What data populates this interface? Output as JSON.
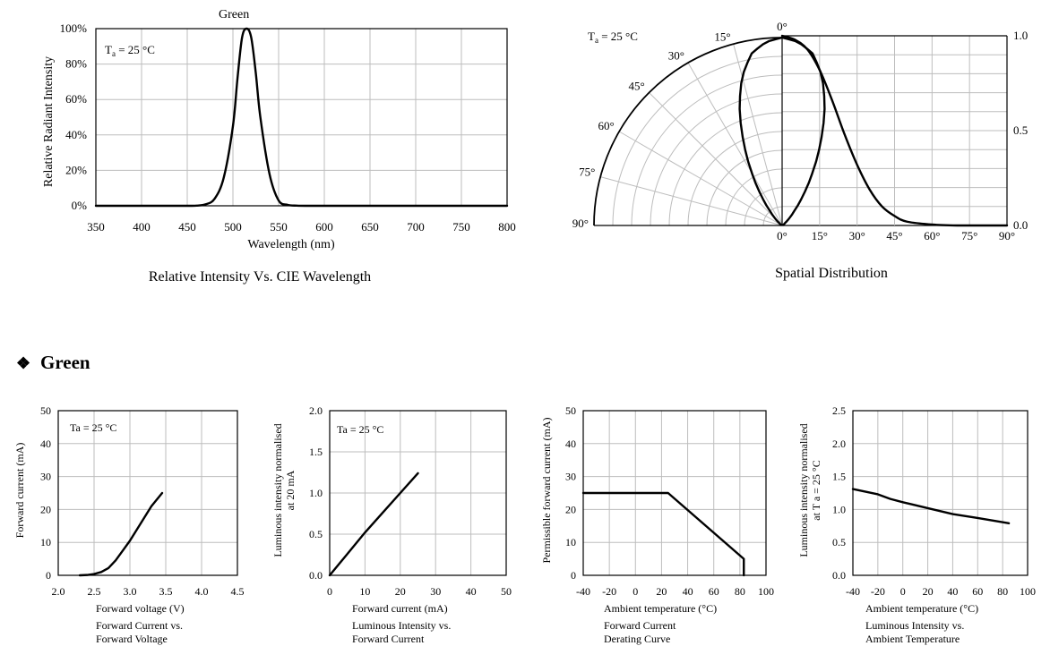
{
  "section_heading": {
    "bullet": "❖",
    "text": "Green"
  },
  "chart_data": [
    {
      "id": "spectrum",
      "type": "line",
      "title": "Relative Intensity Vs. CIE Wavelength",
      "series": [
        {
          "name": "Green",
          "x": [
            350,
            400,
            450,
            460,
            470,
            480,
            490,
            500,
            505,
            510,
            515,
            520,
            525,
            530,
            540,
            550,
            560,
            570,
            580,
            600,
            650,
            700,
            750,
            800
          ],
          "y": [
            0,
            0,
            0,
            0.1,
            0.8,
            4,
            16,
            45,
            72,
            95,
            100,
            95,
            75,
            50,
            18,
            3,
            0.5,
            0.1,
            0,
            0,
            0,
            0,
            0,
            0
          ]
        }
      ],
      "xlabel": "Wavelength (nm)",
      "ylabel": "Relative  Radiant  Intensity",
      "xlim": [
        350,
        800
      ],
      "ylim": [
        0,
        100
      ],
      "x_ticks": [
        "350",
        "400",
        "450",
        "500",
        "550",
        "600",
        "650",
        "700",
        "750",
        "800"
      ],
      "y_ticks": [
        "0%",
        "20%",
        "40%",
        "60%",
        "80%",
        "100%"
      ],
      "annotation_prefix": "T",
      "annotation_sub": "a",
      "annotation_rest": " = 25 °C",
      "grid": true
    },
    {
      "id": "spatial",
      "type": "line",
      "title": "Spatial Distribution",
      "series": [
        {
          "x": [
            0,
            5,
            10,
            15,
            20,
            25,
            30,
            35,
            40,
            45,
            50,
            60,
            70,
            80,
            90
          ],
          "y": [
            1.0,
            0.98,
            0.93,
            0.82,
            0.66,
            0.48,
            0.32,
            0.19,
            0.1,
            0.05,
            0.02,
            0.005,
            0,
            0,
            0
          ]
        }
      ],
      "x_ticks": [
        "0°",
        "15°",
        "30°",
        "45°",
        "60°",
        "75°",
        "90°"
      ],
      "y_ticks": [
        "0.0",
        "0.5",
        "1.0"
      ],
      "polar_labels": [
        "0°",
        "15°",
        "30°",
        "45°",
        "60°",
        "75°",
        "90°"
      ],
      "annotation_prefix": "T",
      "annotation_sub": "a",
      "annotation_rest": " = 25 °C",
      "grid": true
    },
    {
      "id": "iv",
      "type": "line",
      "title_lines": [
        "Forward Current vs.",
        "Forward Voltage"
      ],
      "series": [
        {
          "x": [
            2.3,
            2.4,
            2.5,
            2.6,
            2.7,
            2.8,
            2.9,
            3.0,
            3.1,
            3.2,
            3.3,
            3.45
          ],
          "y": [
            0,
            0.1,
            0.4,
            1,
            2.2,
            4.5,
            7.5,
            10.5,
            14,
            17.5,
            21,
            25
          ]
        }
      ],
      "xlabel": "Forward voltage (V)",
      "ylabel": "Forward current (mA)",
      "xlim": [
        2.0,
        4.5
      ],
      "ylim": [
        0,
        50
      ],
      "x_ticks": [
        "2.0",
        "2.5",
        "3.0",
        "3.5",
        "4.0",
        "4.5"
      ],
      "y_ticks": [
        "0",
        "10",
        "20",
        "30",
        "40",
        "50"
      ],
      "annotation": "Ta = 25 °C",
      "grid": true
    },
    {
      "id": "li",
      "type": "line",
      "title_lines": [
        "Luminous Intensity vs.",
        "Forward Current"
      ],
      "series": [
        {
          "x": [
            0,
            5,
            10,
            15,
            20,
            25
          ],
          "y": [
            0,
            0.26,
            0.52,
            0.76,
            1.0,
            1.24
          ]
        }
      ],
      "xlabel": "Forward current (mA)",
      "ylabel_lines": [
        "Luminous intensity normalised",
        "at 20 mA"
      ],
      "xlim": [
        0,
        50
      ],
      "ylim": [
        0,
        2.0
      ],
      "x_ticks": [
        "0",
        "10",
        "20",
        "30",
        "40",
        "50"
      ],
      "y_ticks": [
        "0.0",
        "0.5",
        "1.0",
        "1.5",
        "2.0"
      ],
      "annotation": "Ta = 25 °C",
      "grid": true
    },
    {
      "id": "derating",
      "type": "line",
      "title_lines": [
        "Forward Current",
        "Derating  Curve"
      ],
      "series": [
        {
          "x": [
            -40,
            25,
            83,
            83
          ],
          "y": [
            25,
            25,
            5,
            0
          ]
        }
      ],
      "xlabel": "Ambient temperature (°C)",
      "ylabel": "Permissible forward current (mA)",
      "xlim": [
        -40,
        100
      ],
      "ylim": [
        0,
        50
      ],
      "x_ticks": [
        "-40",
        "-20",
        "0",
        "20",
        "40",
        "60",
        "80",
        "100"
      ],
      "y_ticks": [
        "0",
        "10",
        "20",
        "30",
        "40",
        "50"
      ],
      "grid": true
    },
    {
      "id": "temp",
      "type": "line",
      "title_lines": [
        "Luminous Intensity vs.",
        "Ambient Temperature"
      ],
      "series": [
        {
          "x": [
            -40,
            -20,
            -10,
            0,
            20,
            40,
            60,
            85
          ],
          "y": [
            1.31,
            1.23,
            1.16,
            1.11,
            1.02,
            0.93,
            0.87,
            0.79
          ]
        }
      ],
      "xlabel": "Ambient temperature (°C)",
      "ylabel_lines": [
        "Luminous intensity normalised",
        "at T a = 25 °C"
      ],
      "xlim": [
        -40,
        100
      ],
      "ylim": [
        0,
        2.5
      ],
      "x_ticks": [
        "-40",
        "-20",
        "0",
        "20",
        "40",
        "60",
        "80",
        "100"
      ],
      "y_ticks": [
        "0.0",
        "0.5",
        "1.0",
        "1.5",
        "2.0",
        "2.5"
      ],
      "grid": true
    }
  ]
}
